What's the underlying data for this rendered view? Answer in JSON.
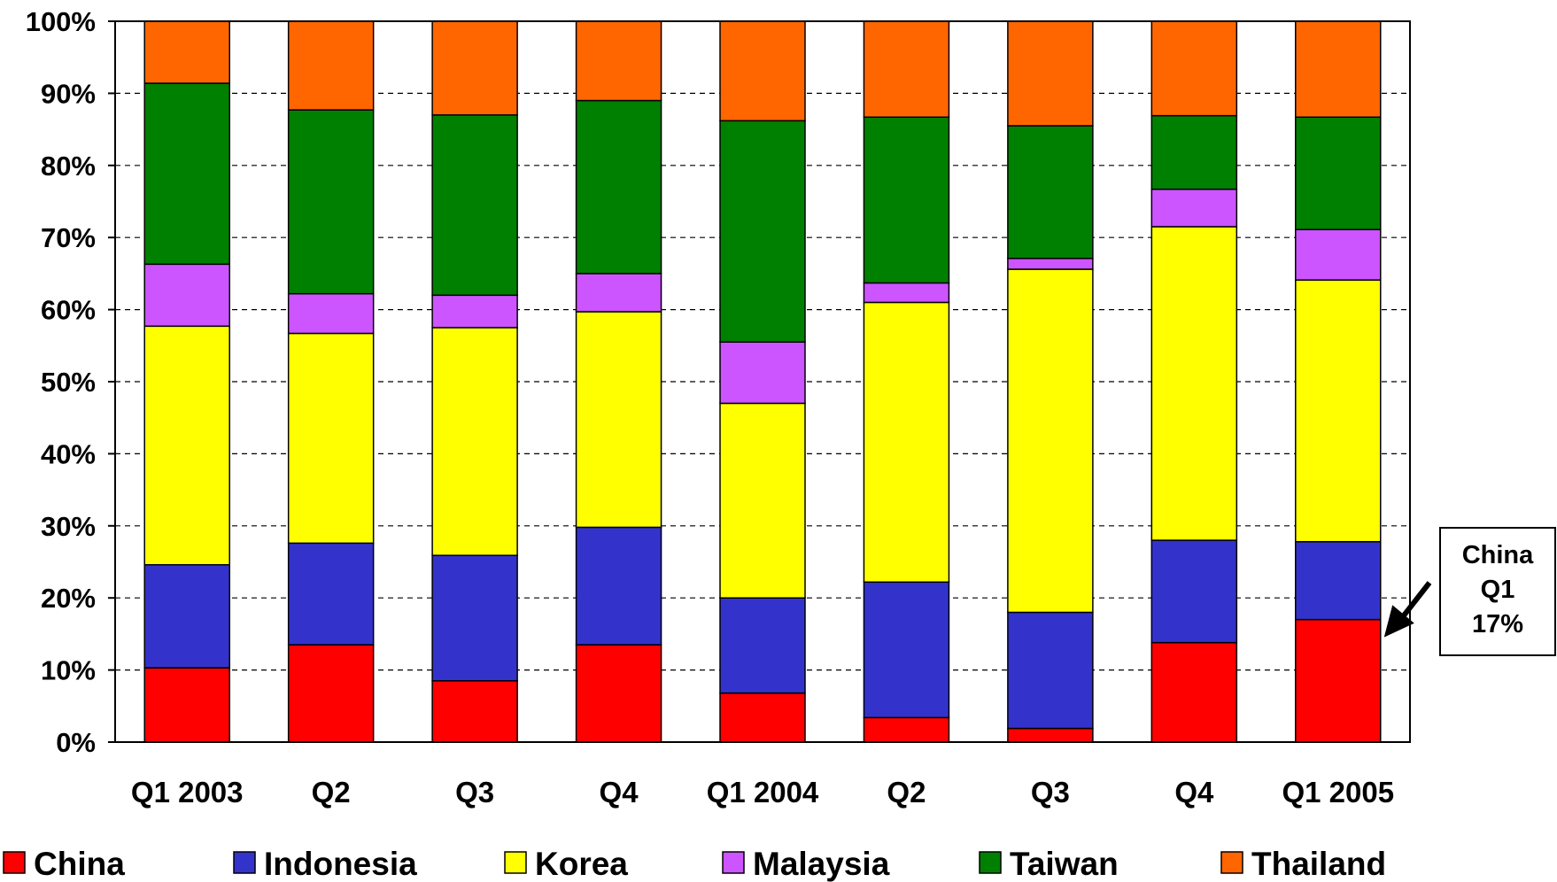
{
  "chart_data": {
    "type": "bar",
    "stacked": true,
    "percent_stacked": true,
    "categories": [
      "Q1 2003",
      "Q2",
      "Q3",
      "Q4",
      "Q1 2004",
      "Q2",
      "Q3",
      "Q4",
      "Q1 2005"
    ],
    "series": [
      {
        "name": "China",
        "color": "#ff0000",
        "values": [
          10.3,
          13.5,
          8.5,
          13.5,
          6.8,
          3.4,
          1.9,
          13.8,
          17.0
        ]
      },
      {
        "name": "Indonesia",
        "color": "#3333cc",
        "values": [
          14.3,
          14.1,
          17.4,
          16.3,
          13.2,
          18.8,
          16.1,
          14.2,
          10.8
        ]
      },
      {
        "name": "Korea",
        "color": "#ffff00",
        "values": [
          33.1,
          29.1,
          31.6,
          29.9,
          27.0,
          38.8,
          47.6,
          43.5,
          36.3
        ]
      },
      {
        "name": "Malaysia",
        "color": "#cc55ff",
        "values": [
          8.6,
          5.5,
          4.5,
          5.3,
          8.5,
          2.7,
          1.5,
          5.2,
          7.0
        ]
      },
      {
        "name": "Taiwan",
        "color": "#008000",
        "values": [
          25.1,
          25.5,
          25.0,
          24.0,
          30.7,
          23.0,
          18.4,
          10.2,
          15.6
        ]
      },
      {
        "name": "Thailand",
        "color": "#ff6600",
        "values": [
          8.6,
          12.3,
          13.0,
          11.0,
          13.8,
          13.3,
          14.5,
          13.1,
          13.3
        ]
      }
    ],
    "y_ticks": [
      "0%",
      "10%",
      "20%",
      "30%",
      "40%",
      "50%",
      "60%",
      "70%",
      "80%",
      "90%",
      "100%"
    ],
    "ylim": [
      0,
      100
    ],
    "grid": "horizontal dashed",
    "legend_position": "bottom",
    "annotation": {
      "lines": [
        "China",
        "Q1",
        "17%"
      ],
      "target_category_index": 8,
      "target_series": "China"
    }
  }
}
